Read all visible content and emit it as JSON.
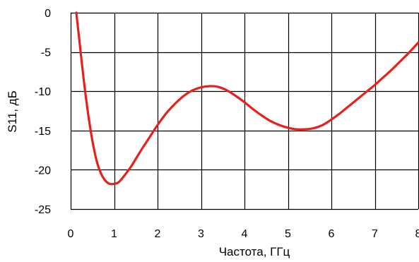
{
  "chart_data": {
    "type": "line",
    "title": "",
    "xlabel": "Частота, ГГц",
    "ylabel": "S11, дБ",
    "xlim": [
      0,
      8
    ],
    "ylim": [
      -25,
      0
    ],
    "x_ticks": [
      0,
      1,
      2,
      3,
      4,
      5,
      6,
      7,
      8
    ],
    "y_ticks": [
      0,
      -5,
      -10,
      -15,
      -20,
      -25
    ],
    "x_tick_labels": [
      "0",
      "1",
      "2",
      "3",
      "4",
      "5",
      "6",
      "7",
      "8"
    ],
    "y_tick_labels": [
      "0",
      "-5",
      "-10",
      "-15",
      "-20",
      "-25"
    ],
    "grid": true,
    "legend": "none",
    "series": [
      {
        "color": "#e8201c",
        "x": [
          0.13,
          0.2,
          0.3,
          0.4,
          0.5,
          0.6,
          0.7,
          0.8,
          0.9,
          1.0,
          1.1,
          1.2,
          1.4,
          1.6,
          1.8,
          2.0,
          2.2,
          2.4,
          2.6,
          2.8,
          3.0,
          3.2,
          3.4,
          3.6,
          3.8,
          4.0,
          4.2,
          4.4,
          4.6,
          4.8,
          5.0,
          5.2,
          5.4,
          5.6,
          5.8,
          6.0,
          6.2,
          6.4,
          6.6,
          6.8,
          7.0,
          7.2,
          7.4,
          7.6,
          7.8,
          8.0
        ],
        "values": [
          0,
          -3.5,
          -8.5,
          -12.8,
          -16.3,
          -18.9,
          -20.5,
          -21.4,
          -21.8,
          -21.8,
          -21.6,
          -21.0,
          -19.5,
          -17.7,
          -16.0,
          -14.3,
          -12.8,
          -11.6,
          -10.6,
          -9.9,
          -9.5,
          -9.35,
          -9.45,
          -9.9,
          -10.6,
          -11.4,
          -12.3,
          -13.1,
          -13.8,
          -14.3,
          -14.65,
          -14.85,
          -14.85,
          -14.7,
          -14.3,
          -13.6,
          -12.8,
          -11.9,
          -11.0,
          -10.1,
          -9.2,
          -8.2,
          -7.2,
          -6.1,
          -5.0,
          -3.8
        ]
      }
    ]
  }
}
